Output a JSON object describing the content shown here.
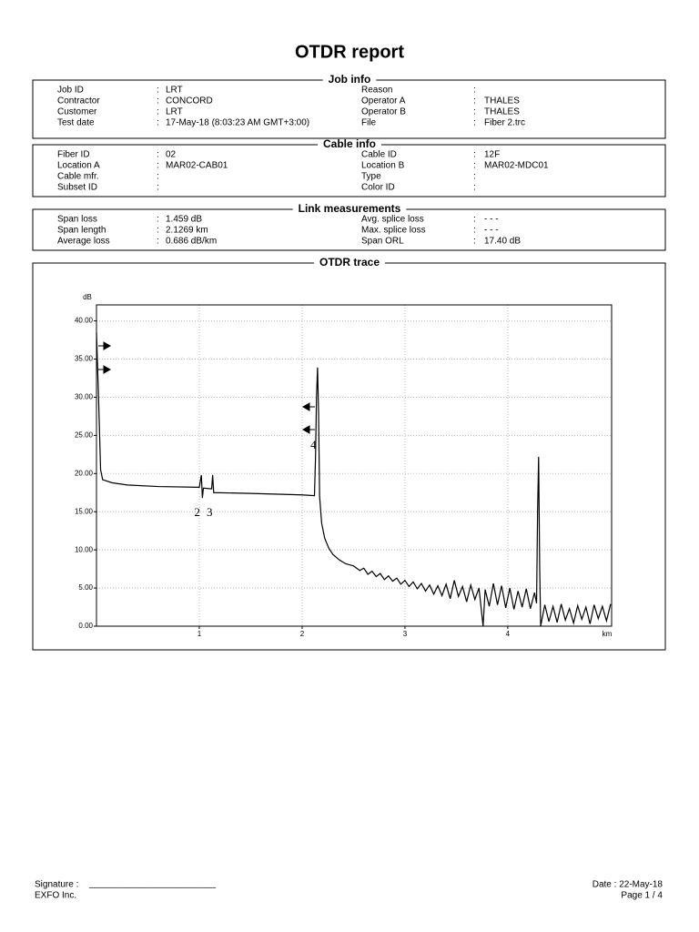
{
  "title": "OTDR report",
  "separator": ":",
  "sections": [
    {
      "title": "Job info",
      "left": [
        {
          "label": "Job ID",
          "value": "LRT"
        },
        {
          "label": "Contractor",
          "value": "CONCORD"
        },
        {
          "label": "Customer",
          "value": "LRT"
        },
        {
          "label": "Test date",
          "value": "17-May-18 (8:03:23 AM GMT+3:00)"
        }
      ],
      "right": [
        {
          "label": "Reason"
        },
        {
          "label": "Operator A",
          "value": "THALES"
        },
        {
          "label": "Operator B",
          "value": "THALES"
        },
        {
          "label": "File",
          "value": "Fiber 2.trc"
        }
      ]
    },
    {
      "title": "Cable info",
      "left": [
        {
          "label": "Fiber ID",
          "value": "02"
        },
        {
          "label": "Location A",
          "value": "MAR02-CAB01"
        },
        {
          "label": "Cable mfr."
        },
        {
          "label": "Subset ID"
        }
      ],
      "right": [
        {
          "label": "Cable ID",
          "value": "12F"
        },
        {
          "label": "Location B",
          "value": "MAR02-MDC01"
        },
        {
          "label": "Type"
        },
        {
          "label": "Color ID"
        }
      ]
    },
    {
      "title": "Link measurements",
      "left": [
        {
          "label": "Span loss",
          "value": "1.459 dB"
        },
        {
          "label": "Span length",
          "value": "2.1269 km"
        },
        {
          "label": "Average loss",
          "value": "0.686 dB/km"
        }
      ],
      "right": [
        {
          "label": "Avg. splice loss",
          "value": "- - -"
        },
        {
          "label": "Max. splice loss",
          "value": "- - -"
        },
        {
          "label": "Span ORL",
          "value": "17.40 dB"
        }
      ]
    }
  ],
  "chart_data": {
    "type": "line",
    "title": "OTDR trace",
    "y_label": "dB",
    "x_label": "km",
    "color": "#000000",
    "grid": true,
    "xlim": [
      0,
      5.01
    ],
    "ylim": [
      0,
      42.1
    ],
    "xticks": [
      1,
      2,
      3,
      4
    ],
    "yticks": [
      {
        "value": 0,
        "label": "0.00"
      },
      {
        "value": 5,
        "label": "5.00"
      },
      {
        "value": 10,
        "label": "10.00"
      },
      {
        "value": 15,
        "label": "15.00"
      },
      {
        "value": 20,
        "label": "20.00"
      },
      {
        "value": 25,
        "label": "25.00"
      },
      {
        "value": 30,
        "label": "30.00"
      },
      {
        "value": 35,
        "label": "35.00"
      },
      {
        "value": 40,
        "label": "40.00"
      }
    ],
    "x": [
      0,
      0.02,
      0.04,
      0.06,
      0.15,
      0.3,
      0.6,
      1.0,
      1.02,
      1.03,
      1.04,
      1.12,
      1.13,
      1.14,
      1.5,
      2.0,
      2.12,
      2.13,
      2.14,
      2.15,
      2.16,
      2.17,
      2.19,
      2.22,
      2.26,
      2.3,
      2.36,
      2.42,
      2.5,
      2.56,
      2.6,
      2.64,
      2.68,
      2.72,
      2.76,
      2.8,
      2.84,
      2.88,
      2.92,
      2.96,
      3.0,
      3.04,
      3.08,
      3.12,
      3.16,
      3.2,
      3.24,
      3.28,
      3.32,
      3.36,
      3.4,
      3.44,
      3.48,
      3.52,
      3.56,
      3.6,
      3.64,
      3.68,
      3.72,
      3.76,
      3.78,
      3.82,
      3.86,
      3.9,
      3.94,
      3.98,
      4.02,
      4.06,
      4.1,
      4.14,
      4.18,
      4.22,
      4.26,
      4.28,
      4.29,
      4.3,
      4.31,
      4.32,
      4.36,
      4.4,
      4.44,
      4.48,
      4.52,
      4.56,
      4.6,
      4.64,
      4.68,
      4.72,
      4.76,
      4.8,
      4.84,
      4.88,
      4.92,
      4.96,
      5.0
    ],
    "values": [
      38.5,
      30,
      20.5,
      19.2,
      18.8,
      18.5,
      18.3,
      18.2,
      19.8,
      16.8,
      18.1,
      18.0,
      19.8,
      17.5,
      17.4,
      17.2,
      17.1,
      22,
      30,
      33.9,
      28,
      17,
      13.5,
      11.5,
      10.2,
      9.4,
      8.7,
      8.2,
      7.9,
      7.3,
      7.6,
      6.8,
      7.2,
      6.5,
      6.9,
      6.1,
      6.6,
      5.9,
      6.3,
      5.5,
      6.0,
      5.2,
      5.8,
      4.9,
      5.6,
      4.6,
      5.4,
      4.2,
      5.3,
      4.0,
      5.5,
      3.6,
      6.0,
      3.9,
      5.2,
      3.2,
      5.4,
      3.5,
      5.0,
      0.0,
      4.8,
      2.6,
      5.6,
      2.8,
      5.3,
      2.4,
      5.0,
      2.2,
      4.6,
      2.5,
      4.9,
      2.3,
      4.4,
      3.0,
      15,
      22.2,
      8,
      0.0,
      2.8,
      0.6,
      2.6,
      0.5,
      2.9,
      0.8,
      2.3,
      0.4,
      2.7,
      0.9,
      2.5,
      0.3,
      2.8,
      1.0,
      2.6,
      0.7,
      2.9
    ],
    "events": [
      {
        "label": "2",
        "x": 0.98
      },
      {
        "label": "3",
        "x": 1.1
      },
      {
        "label": "4",
        "x": 2.11
      }
    ]
  },
  "footer": {
    "signature_label": "Signature  :",
    "signature_line": "_________________________",
    "company": "EXFO Inc.",
    "date": "Date : 22-May-18",
    "page": "Page 1 / 4"
  }
}
